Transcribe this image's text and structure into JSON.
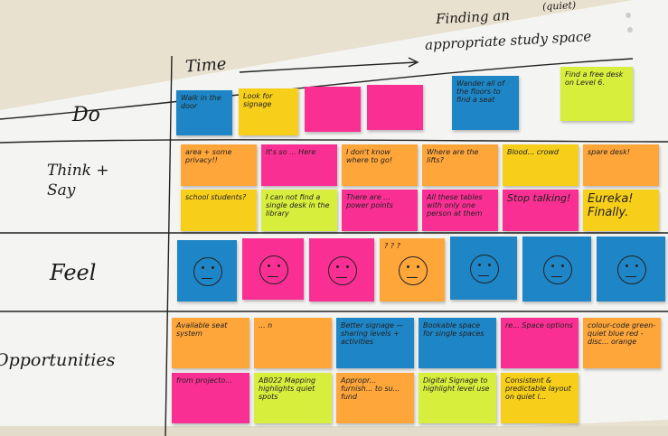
{
  "board": {
    "title_line1": "Finding an",
    "title_line2": "appropriate study space",
    "title_insert": "(quiet)",
    "time_label": "Time",
    "rows": [
      {
        "label": "Do",
        "notes": [
          {
            "text": "Walk in the door",
            "color": "#1e86c6"
          },
          {
            "text": "Look for signage",
            "color": "#f7cf1b"
          },
          {
            "text": "",
            "color": "#fa2f94"
          },
          {
            "text": "",
            "color": "#fa2f94"
          },
          {
            "text": "Wander all of the floors to find a seat",
            "color": "#1e86c6"
          },
          {
            "text": "Find a free desk on Level 6.",
            "color": "#d7ee3d"
          }
        ]
      },
      {
        "label": "Think + Say",
        "notes": [
          {
            "text": "area + some privacy!!",
            "color": "#ffa63a"
          },
          {
            "text": "It's so ... Here",
            "color": "#fa2f94"
          },
          {
            "text": "I don't know where to go!",
            "color": "#ffa63a"
          },
          {
            "text": "Where are the lifts?",
            "color": "#ffa63a"
          },
          {
            "text": "Blood... crowd",
            "color": "#f7cf1b"
          },
          {
            "text": "spare desk!",
            "color": "#ffa63a"
          },
          {
            "text": "school students?",
            "color": "#f7cf1b"
          },
          {
            "text": "I can not find a single desk in the library",
            "color": "#d7ee3d"
          },
          {
            "text": "There are ... power points",
            "color": "#fa2f94"
          },
          {
            "text": "All these tables with only one person at them",
            "color": "#fa2f94"
          },
          {
            "text": "Stop talking!",
            "color": "#fa2f94"
          },
          {
            "text": "Eureka! Finally.",
            "color": "#f7cf1b"
          }
        ]
      },
      {
        "label": "Feel",
        "notes": [
          {
            "text": "",
            "color": "#1e86c6"
          },
          {
            "text": "",
            "color": "#fa2f94"
          },
          {
            "text": "",
            "color": "#fa2f94"
          },
          {
            "text": "? ? ?",
            "color": "#ffa63a"
          },
          {
            "text": "",
            "color": "#1e86c6"
          },
          {
            "text": "",
            "color": "#1e86c6"
          },
          {
            "text": "",
            "color": "#1e86c6"
          }
        ]
      },
      {
        "label": "Opportunities",
        "notes": [
          {
            "text": "Available seat system",
            "color": "#ffa63a"
          },
          {
            "text": "... n",
            "color": "#ffa63a"
          },
          {
            "text": "Better signage — sharing levels + activities",
            "color": "#1e86c6"
          },
          {
            "text": "Bookable space for single spaces",
            "color": "#1e86c6"
          },
          {
            "text": "re... Space options",
            "color": "#fa2f94"
          },
          {
            "text": "colour-code green-quiet blue red - disc... orange",
            "color": "#ffa63a"
          },
          {
            "text": "from projecto...",
            "color": "#fa2f94"
          },
          {
            "text": "AB022 Mapping highlights quiet spots",
            "color": "#d7ee3d"
          },
          {
            "text": "Appropr... furnish... to su... fund",
            "color": "#ffa63a"
          },
          {
            "text": "Digital Signage to highlight level use",
            "color": "#d7ee3d"
          },
          {
            "text": "Consistent & predictable layout on quiet l...",
            "color": "#f7cf1b"
          }
        ]
      }
    ]
  }
}
